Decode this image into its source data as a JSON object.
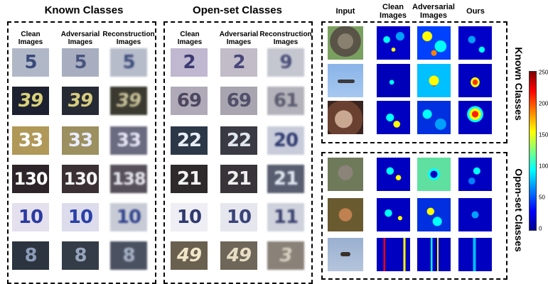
{
  "sections": {
    "known_title": "Known Classes",
    "openset_title": "Open-set Classes"
  },
  "digit_columns": {
    "clean": "Clean\nImages",
    "adversarial": "Adversarial\nImages",
    "reconstruction": "Reconstruction\nImages"
  },
  "right_panel": {
    "columns": {
      "input": "Input",
      "clean": "Clean\nImages",
      "adversarial": "Adversarial\nImages",
      "ours": "Ours"
    },
    "known_label": "Known Classes",
    "openset_label": "Open-set Classes"
  },
  "known_digits": {
    "clean": [
      "5",
      "39",
      "33",
      "130",
      "10",
      "8"
    ],
    "adversarial": [
      "5",
      "39",
      "33",
      "130",
      "10",
      "8"
    ],
    "reconstruction": [
      "5",
      "39",
      "33",
      "138",
      "10",
      "8"
    ]
  },
  "openset_digits": {
    "clean": [
      "2",
      "69",
      "22",
      "21",
      "10",
      "49"
    ],
    "adversarial": [
      "2",
      "69",
      "22",
      "21",
      "10",
      "49"
    ],
    "reconstruction": [
      "9",
      "61",
      "20",
      "21",
      "11",
      "3"
    ]
  },
  "colorbar": {
    "ticks": [
      "250",
      "200",
      "150",
      "100",
      "50",
      "0"
    ],
    "colors": [
      "#00008f",
      "#0000ff",
      "#00ffff",
      "#7fff7f",
      "#ffff00",
      "#ff0000",
      "#800000"
    ]
  }
}
